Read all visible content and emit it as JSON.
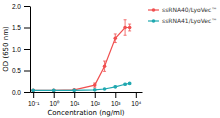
{
  "chart_data": {
    "type": "line",
    "title": "",
    "xlabel": "Concentration (ng/ml)",
    "ylabel": "OD (650 nm)",
    "log": "x",
    "x": [
      0.1,
      1.0,
      10.0,
      100.0,
      300.0,
      1000.0,
      3000.0,
      5000.0
    ],
    "xlim": [
      0.07,
      20000
    ],
    "xticks": [
      {
        "value": 0.1,
        "label": "10⁻¹"
      },
      {
        "value": 1,
        "label": "10⁰"
      },
      {
        "value": 10,
        "label": "10¹"
      },
      {
        "value": 100,
        "label": "10²"
      },
      {
        "value": 1000,
        "label": "10³"
      },
      {
        "value": 10000,
        "label": "10⁴"
      }
    ],
    "ylim": [
      0,
      2.0
    ],
    "yticks": [
      {
        "value": 0.0,
        "label": "0.0"
      },
      0.5,
      {
        "value": 1.0,
        "label": "1.0"
      },
      1.5,
      {
        "value": 2.0,
        "label": "2.0"
      }
    ],
    "legend": "right",
    "series": [
      {
        "name": "ssRNA40/LyoVec™",
        "color": "#f05050",
        "marker": "circle",
        "values": [
          0.04,
          0.04,
          0.05,
          0.16,
          0.6,
          1.25,
          1.5,
          1.5
        ],
        "errors": [
          0.01,
          0.01,
          0.01,
          0.05,
          0.12,
          0.1,
          0.18,
          0.08
        ]
      },
      {
        "name": "ssRNA41/LyoVec™",
        "color": "#20a8b0",
        "marker": "circle",
        "values": [
          0.04,
          0.04,
          0.04,
          0.05,
          0.07,
          0.12,
          0.18,
          0.2
        ],
        "errors": [
          0.005,
          0.005,
          0.005,
          0.01,
          0.01,
          0.02,
          0.02,
          0.02
        ]
      }
    ]
  }
}
